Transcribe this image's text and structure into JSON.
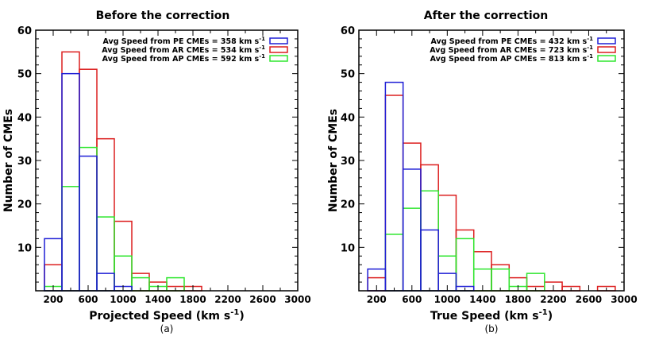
{
  "chart_data": [
    {
      "type": "histogram",
      "title": "Before the correction",
      "xlabel": "Projected Speed (km s",
      "xlabel_sup": "-1",
      "xlabel_close": ")",
      "sublabel": "(a)",
      "ylabel": "Number of CMEs",
      "xlim": [
        0,
        3000
      ],
      "ylim": [
        0,
        60
      ],
      "xticks": [
        200,
        600,
        1000,
        1400,
        1800,
        2200,
        2600,
        3000
      ],
      "yticks": [
        10,
        20,
        30,
        40,
        50,
        60
      ],
      "bin_width": 200,
      "bin_starts": [
        100,
        300,
        500,
        700,
        900,
        1100,
        1300,
        1500,
        1700
      ],
      "series": [
        {
          "name": "PE",
          "color": "#1f1fd6",
          "legend": "Avg Speed from PE CMEs = 358 km s",
          "values": [
            12,
            50,
            31,
            4,
            1,
            0,
            0,
            0,
            0
          ]
        },
        {
          "name": "AR",
          "color": "#dc1f1f",
          "legend": "Avg Speed from AR CMEs = 534 km s",
          "values": [
            6,
            55,
            51,
            35,
            16,
            4,
            2,
            1,
            1
          ]
        },
        {
          "name": "AP",
          "color": "#2ee62e",
          "legend": "Avg Speed from AP CMEs = 592 km s",
          "values": [
            1,
            24,
            33,
            17,
            8,
            3,
            1,
            3,
            0
          ]
        }
      ]
    },
    {
      "type": "histogram",
      "title": "After the correction",
      "xlabel": "True Speed (km s",
      "xlabel_sup": "-1",
      "xlabel_close": ")",
      "sublabel": "(b)",
      "ylabel": "Number of CMEs",
      "xlim": [
        0,
        3000
      ],
      "ylim": [
        0,
        60
      ],
      "xticks": [
        200,
        600,
        1000,
        1400,
        1800,
        2200,
        2600,
        3000
      ],
      "yticks": [
        10,
        20,
        30,
        40,
        50,
        60
      ],
      "bin_width": 200,
      "bin_starts": [
        100,
        300,
        500,
        700,
        900,
        1100,
        1300,
        1500,
        1700,
        1900,
        2100,
        2300,
        2500,
        2700
      ],
      "series": [
        {
          "name": "PE",
          "color": "#1f1fd6",
          "legend": "Avg Speed from PE CMEs = 432 km s",
          "values": [
            5,
            48,
            28,
            14,
            4,
            1,
            0,
            0,
            0,
            0,
            0,
            0,
            0,
            0
          ]
        },
        {
          "name": "AR",
          "color": "#dc1f1f",
          "legend": "Avg Speed from AR CMEs = 723 km s",
          "values": [
            3,
            45,
            34,
            29,
            22,
            14,
            9,
            6,
            3,
            1,
            2,
            1,
            0,
            1
          ]
        },
        {
          "name": "AP",
          "color": "#2ee62e",
          "legend": "Avg Speed from AP CMEs = 813 km s",
          "values": [
            0,
            13,
            19,
            23,
            8,
            12,
            5,
            5,
            1,
            4,
            0,
            0,
            0,
            0
          ]
        }
      ]
    }
  ],
  "legend_unit_sup": "-1"
}
